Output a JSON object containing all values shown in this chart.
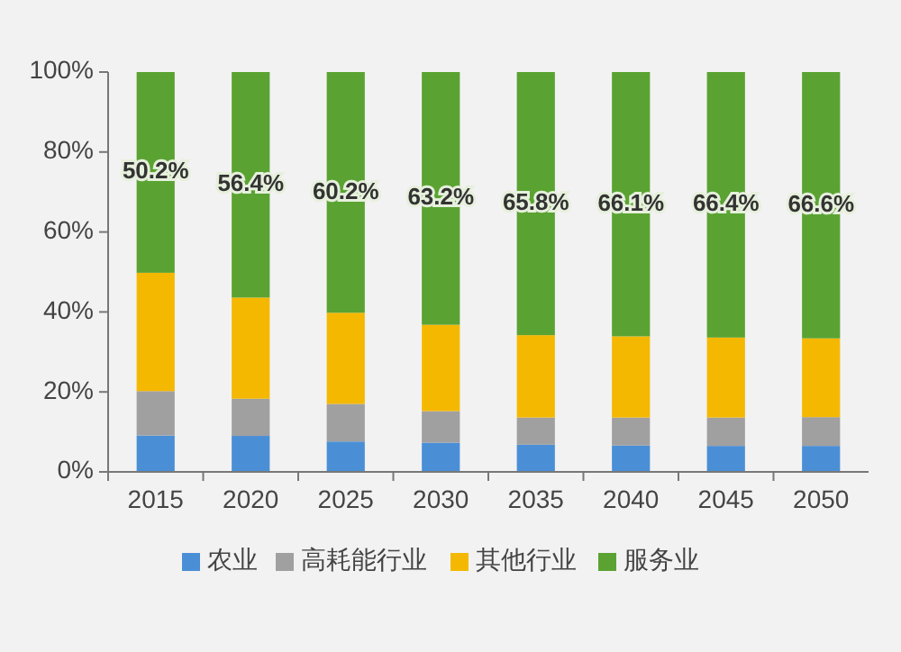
{
  "chart_data": {
    "type": "bar",
    "stacked": true,
    "categories": [
      "2015",
      "2020",
      "2025",
      "2030",
      "2035",
      "2040",
      "2045",
      "2050"
    ],
    "series": [
      {
        "name": "农业",
        "color": "#4a8fd6",
        "values": [
          9.1,
          9,
          7.6,
          7.3,
          6.8,
          6.6,
          6.5,
          6.5
        ]
      },
      {
        "name": "高耗能行业",
        "color": "#a0a0a0",
        "values": [
          11.1,
          9.3,
          9.4,
          7.9,
          6.8,
          7,
          7.1,
          7.2
        ]
      },
      {
        "name": "其他行业",
        "color": "#f5b800",
        "values": [
          29.6,
          25.3,
          22.8,
          21.6,
          20.6,
          20.3,
          20,
          19.7
        ]
      },
      {
        "name": "服务业",
        "color": "#5aa332",
        "values": [
          50.2,
          56.4,
          60.2,
          63.2,
          65.8,
          66.1,
          66.4,
          66.6
        ],
        "value_labels": [
          "50.2%",
          "56.4%",
          "60.2%",
          "63.2%",
          "65.8%",
          "66.1%",
          "66.4%",
          "66.6%"
        ]
      }
    ],
    "ylim": [
      0,
      100
    ],
    "yticks": [
      {
        "value": 0,
        "label": "0%"
      },
      {
        "value": 20,
        "label": "20%"
      },
      {
        "value": 40,
        "label": "40%"
      },
      {
        "value": 60,
        "label": "60%"
      },
      {
        "value": 80,
        "label": "80%"
      },
      {
        "value": 100,
        "label": "100%"
      }
    ],
    "grid": false,
    "legend": "bottom"
  }
}
